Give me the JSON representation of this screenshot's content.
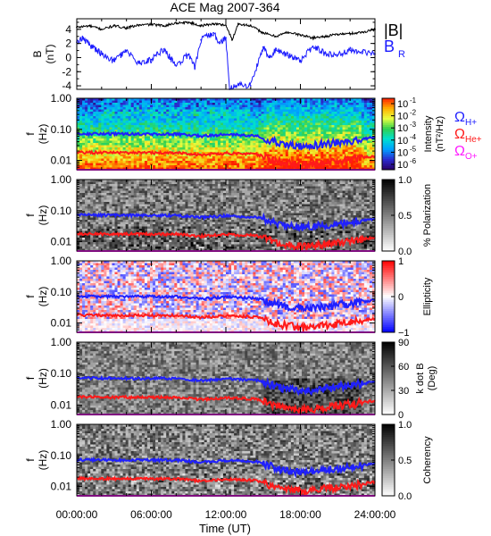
{
  "title": "ACE Mag 2007-364",
  "xlabel": "Time (UT)",
  "xticks": [
    "00:00:00",
    "06:00:00",
    "12:00:00",
    "18:00:00",
    "24:00:00"
  ],
  "colors": {
    "B_total": "#000000",
    "B_R": "#1a1aff",
    "H_plus": "#1f1fff",
    "He_plus": "#ff1a1a",
    "O_plus": "#ff1aff"
  },
  "chart_data": [
    {
      "type": "line",
      "ylabel_lines": [
        "B",
        "(nT)"
      ],
      "ylim": [
        -4.5,
        5.5
      ],
      "yticks": [
        "4",
        "2",
        "0",
        "-2",
        "-4"
      ],
      "ytick_values": [
        4,
        2,
        0,
        -2,
        -4
      ],
      "xlim_hours": [
        0,
        24
      ],
      "legend": {
        "total_label": "|B|",
        "r_label": "B",
        "r_sub": "R"
      },
      "series": [
        {
          "name": "|B|",
          "x_hours": [
            0,
            1,
            2,
            3,
            4,
            5,
            6,
            7,
            8,
            9,
            10,
            11,
            12,
            12.5,
            13,
            14,
            15,
            16,
            17,
            18,
            19,
            20,
            21,
            22,
            23,
            24
          ],
          "values": [
            4.3,
            4.5,
            4.0,
            4.5,
            4.2,
            4.6,
            4.7,
            4.5,
            4.9,
            5.0,
            4.5,
            4.8,
            4.6,
            2.5,
            4.8,
            4.5,
            3.5,
            3.0,
            3.6,
            3.2,
            2.8,
            3.0,
            3.3,
            3.4,
            3.6,
            4.0
          ]
        },
        {
          "name": "B",
          "x_hours": [
            0,
            0.5,
            1,
            2,
            3,
            4,
            5,
            6,
            7,
            8,
            9,
            9.5,
            10,
            11,
            11.5,
            12,
            12.3,
            13,
            14,
            15,
            15.5,
            16,
            17,
            18,
            19,
            20,
            21,
            22,
            23,
            24
          ],
          "values": [
            2.2,
            2.8,
            1.8,
            0.5,
            -0.5,
            1.0,
            -0.8,
            -0.3,
            1.2,
            -1.2,
            0.5,
            -1.5,
            2.5,
            3.5,
            2.0,
            2.8,
            -4.5,
            -3.8,
            -4.0,
            1.5,
            0.0,
            1.0,
            0.3,
            -0.5,
            1.6,
            0.6,
            0.4,
            1.0,
            0.9,
            0.5
          ]
        }
      ]
    },
    {
      "type": "heatmap",
      "ylabel_lines": [
        "f",
        "(Hz)"
      ],
      "ylim": [
        0.005,
        1.0
      ],
      "yscale": "log",
      "yticks": [
        "1.00",
        "0.10",
        "0.01"
      ],
      "ytick_values": [
        1.0,
        0.1,
        0.01
      ],
      "colorbar": {
        "label_lines": [
          "Intensity",
          "(nT²/Hz)"
        ],
        "tick_base": "10",
        "tick_exps": [
          "-1",
          "-2",
          "-3",
          "-4",
          "-5",
          "-6"
        ],
        "colors": [
          "#2a0066",
          "#2b2bd0",
          "#00a0ff",
          "#00e0d0",
          "#30d050",
          "#e8ff40",
          "#ffb000",
          "#ff2000"
        ]
      },
      "gyro_lines": {
        "x_hours": [
          0,
          4,
          8,
          10,
          12,
          14.5,
          15.5,
          16.5,
          17.5,
          18.5,
          19.5,
          20.5,
          21.5,
          22.5,
          24
        ],
        "H_plus": [
          0.072,
          0.07,
          0.07,
          0.06,
          0.068,
          0.062,
          0.045,
          0.035,
          0.03,
          0.028,
          0.032,
          0.035,
          0.04,
          0.045,
          0.055
        ],
        "He_plus": [
          0.018,
          0.0175,
          0.0175,
          0.015,
          0.017,
          0.0155,
          0.011,
          0.0088,
          0.0075,
          0.007,
          0.008,
          0.0088,
          0.01,
          0.011,
          0.014
        ],
        "O_plus": [
          0.0045,
          0.0044,
          0.0044,
          0.0038,
          0.0043,
          0.0039,
          0.0028,
          0.0022,
          0.0019,
          0.0018,
          0.002,
          0.0022,
          0.0025,
          0.0028,
          0.0035
        ]
      },
      "legend": [
        {
          "symbol": "Ω",
          "sub": "H+",
          "color": "#1f1fff"
        },
        {
          "symbol": "Ω",
          "sub": "He+",
          "color": "#ff1a1a"
        },
        {
          "symbol": "Ω",
          "sub": "O+",
          "color": "#ff1aff"
        }
      ]
    },
    {
      "type": "heatmap",
      "ylabel_lines": [
        "f",
        "(Hz)"
      ],
      "yscale": "log",
      "ylim": [
        0.005,
        1.0
      ],
      "yticks": [
        "1.00",
        "0.10",
        "0.01"
      ],
      "ytick_values": [
        1.0,
        0.1,
        0.01
      ],
      "colorbar": {
        "label_lines": [
          "% Polarization"
        ],
        "ticks": [
          "1.0",
          "0.5",
          "0.0"
        ],
        "tick_values": [
          1.0,
          0.5,
          0.0
        ],
        "range": [
          0.0,
          1.0
        ],
        "colors": [
          "#ffffff",
          "#000000"
        ]
      }
    },
    {
      "type": "heatmap",
      "ylabel_lines": [
        "f",
        "(Hz)"
      ],
      "yscale": "log",
      "ylim": [
        0.005,
        1.0
      ],
      "yticks": [
        "1.00",
        "0.10",
        "0.01"
      ],
      "ytick_values": [
        1.0,
        0.1,
        0.01
      ],
      "colorbar": {
        "label_lines": [
          "Ellipticity"
        ],
        "ticks": [
          "1",
          "0",
          "−1"
        ],
        "tick_values": [
          1,
          0,
          -1
        ],
        "range": [
          -1,
          1
        ],
        "colors": [
          "#0000ff",
          "#ffffff",
          "#ff0000"
        ]
      }
    },
    {
      "type": "heatmap",
      "ylabel_lines": [
        "f",
        "(Hz)"
      ],
      "yscale": "log",
      "ylim": [
        0.005,
        1.0
      ],
      "yticks": [
        "1.00",
        "0.10",
        "0.01"
      ],
      "ytick_values": [
        1.0,
        0.1,
        0.01
      ],
      "colorbar": {
        "label_lines": [
          "k dot B",
          "(Deg)"
        ],
        "ticks": [
          "90",
          "60",
          "30",
          "0"
        ],
        "tick_values": [
          90,
          60,
          30,
          0
        ],
        "range": [
          0,
          90
        ],
        "colors": [
          "#ffffff",
          "#000000"
        ]
      }
    },
    {
      "type": "heatmap",
      "ylabel_lines": [
        "f",
        "(Hz)"
      ],
      "yscale": "log",
      "ylim": [
        0.005,
        1.0
      ],
      "yticks": [
        "1.00",
        "0.10",
        "0.01"
      ],
      "ytick_values": [
        1.0,
        0.1,
        0.01
      ],
      "colorbar": {
        "label_lines": [
          "Coherency"
        ],
        "ticks": [
          "1.0",
          "0.5",
          "0.0"
        ],
        "tick_values": [
          1.0,
          0.5,
          0.0
        ],
        "range": [
          0.0,
          1.0
        ],
        "colors": [
          "#ffffff",
          "#000000"
        ]
      }
    }
  ]
}
